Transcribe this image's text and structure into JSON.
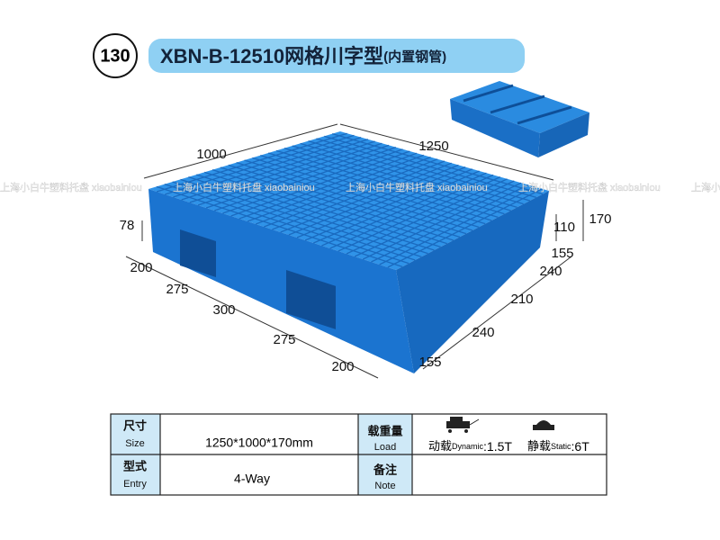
{
  "header": {
    "number": "130",
    "title": "XBN-B-12510网格川字型",
    "subtitle": "(内置钢管)"
  },
  "watermark": "上海小白牛塑料托盘 xiaobainiou",
  "dimensions": {
    "length": "1000",
    "width": "1250",
    "deck": "78",
    "foot": "110",
    "height": "170",
    "left": [
      "200",
      "275",
      "300",
      "275",
      "200"
    ],
    "right": [
      "155",
      "240",
      "210",
      "240",
      "155"
    ]
  },
  "table": {
    "rows": [
      {
        "label_cn": "尺寸",
        "label_en": "Size",
        "value": "1250*1000*170mm",
        "label2_cn": "载重量",
        "label2_en": "Load",
        "load": {
          "dynamic_cn": "动载",
          "dynamic_en": "Dynamic",
          "dynamic_value": ":1.5T",
          "static_cn": "静载",
          "static_en": "Static",
          "static_value": ":6T"
        }
      },
      {
        "label_cn": "型式",
        "label_en": "Entry",
        "value": "4-Way",
        "label2_cn": "备注",
        "label2_en": "Note"
      }
    ]
  }
}
